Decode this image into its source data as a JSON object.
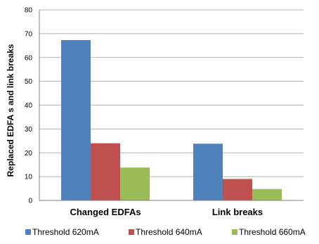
{
  "chart_data": {
    "type": "bar",
    "categories": [
      "Changed EDFAs",
      "Link breaks"
    ],
    "series": [
      {
        "name": "Threshold 620mA",
        "color": "#4F81BD",
        "values": [
          67.3,
          23.8
        ]
      },
      {
        "name": "Threshold 640mA",
        "color": "#C0504D",
        "values": [
          24,
          9
        ]
      },
      {
        "name": "Threshold 660mA",
        "color": "#9BBB59",
        "values": [
          13.8,
          4.8
        ]
      }
    ],
    "ylabel": "Replaced EDFA s and link breaks",
    "xlabel": "",
    "ylim": [
      0,
      80
    ],
    "yticks": [
      0,
      10,
      20,
      30,
      40,
      50,
      60,
      70,
      80
    ],
    "grid": true,
    "legend": "bottom"
  }
}
